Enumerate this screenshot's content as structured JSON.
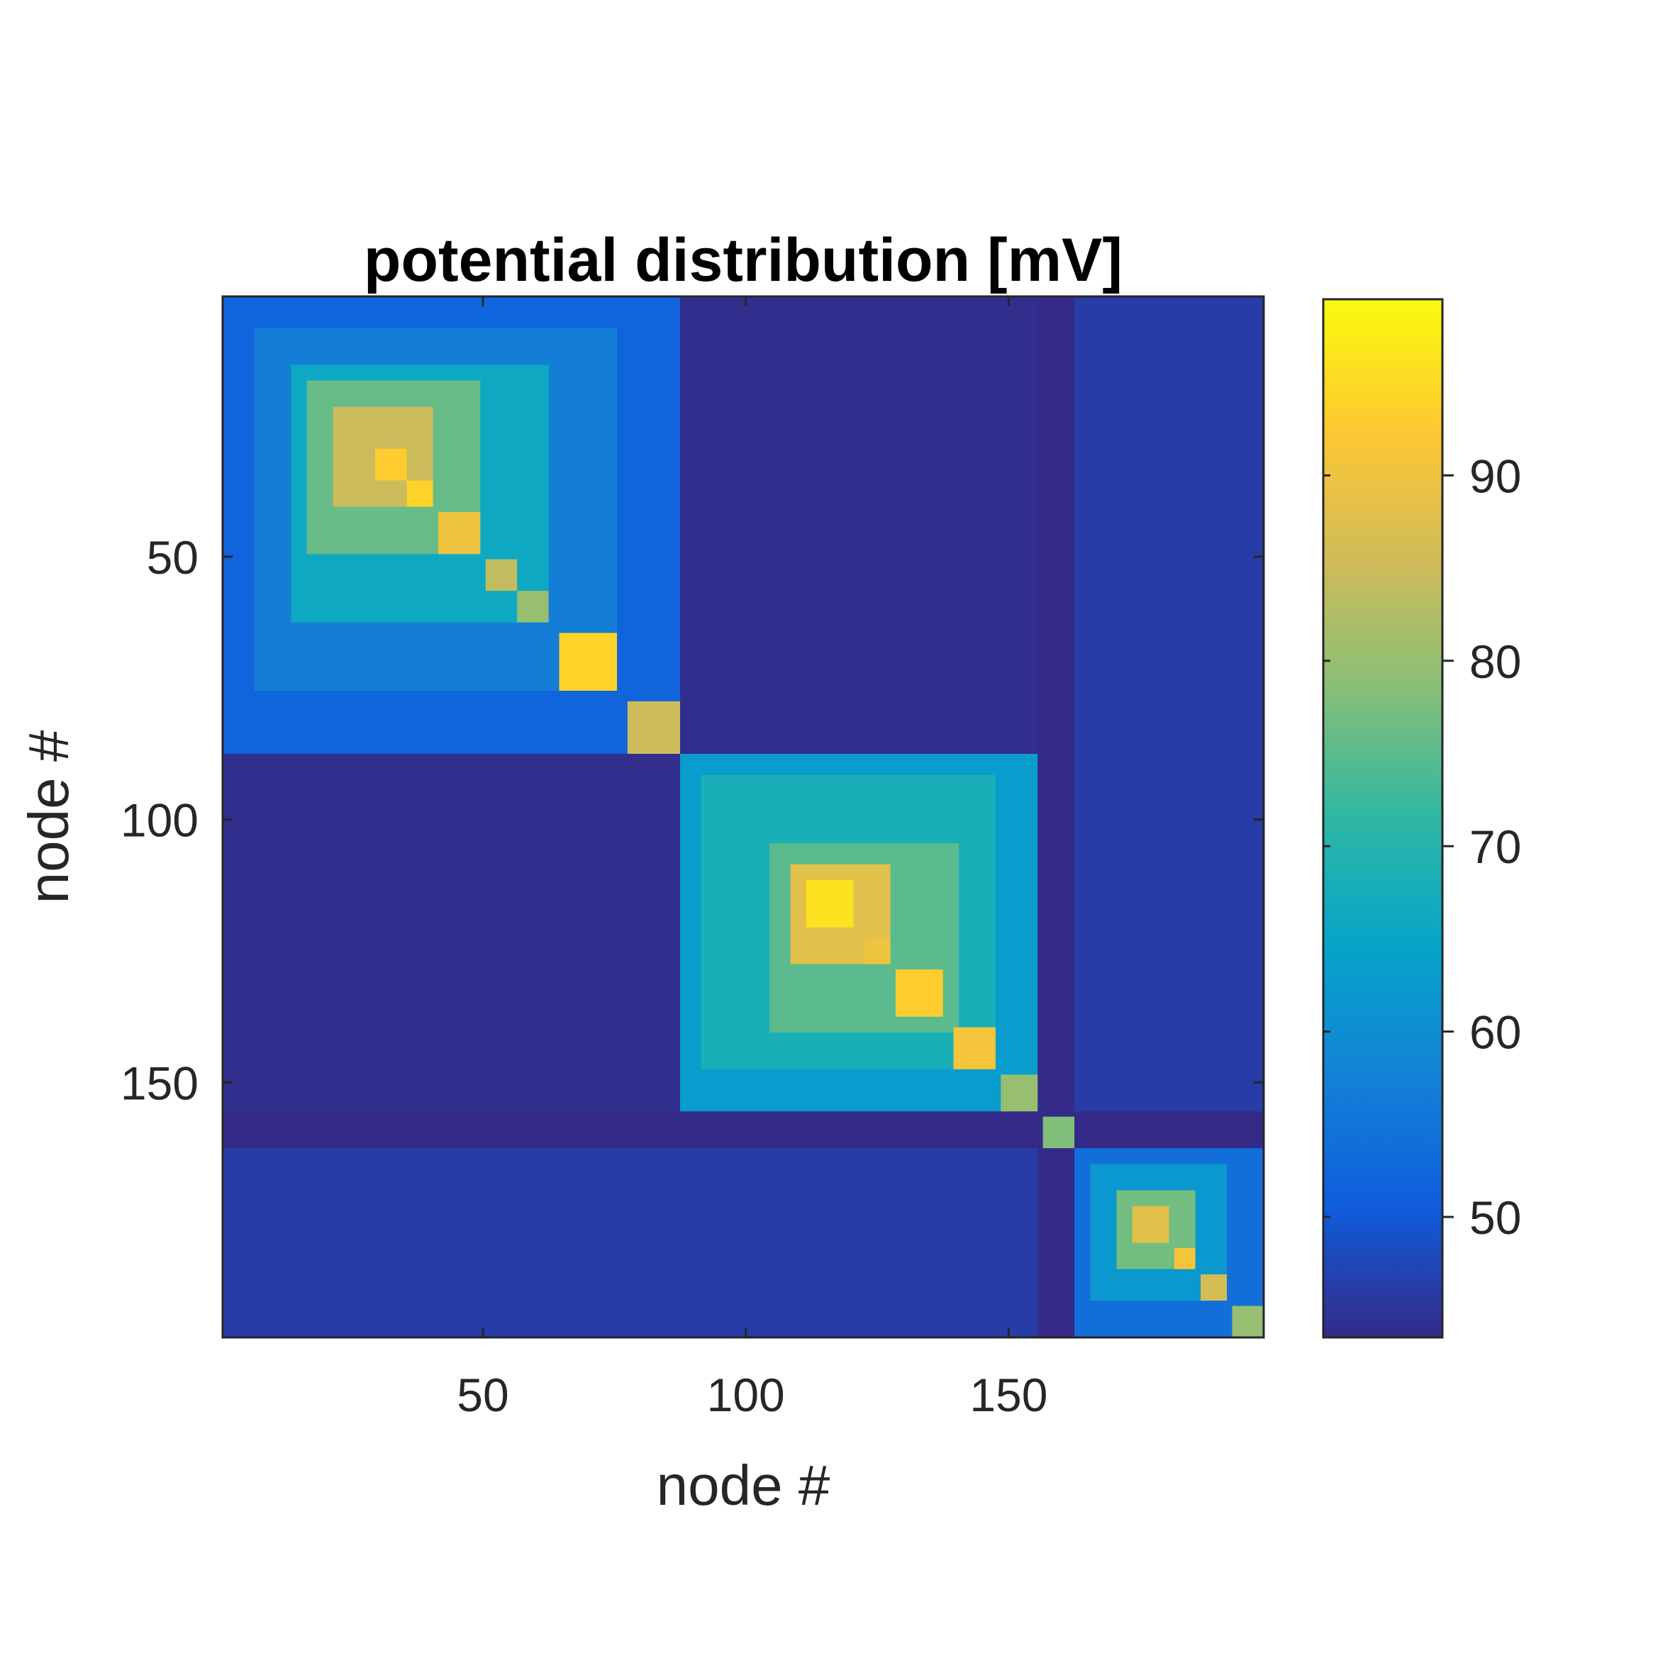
{
  "chart_data": {
    "type": "heatmap",
    "title": "potential distribution [mV]",
    "xlabel": "node #",
    "ylabel": "node #",
    "xlim": [
      0.5,
      198.5
    ],
    "ylim": [
      0.5,
      198.5
    ],
    "y_reversed": true,
    "xticks": [
      50,
      100,
      150
    ],
    "yticks": [
      50,
      100,
      150
    ],
    "colorbar": {
      "clim": [
        43.5,
        99.5
      ],
      "ticks": [
        50,
        60,
        70,
        80,
        90
      ],
      "colormap": "parula"
    },
    "grid": false,
    "n_nodes": 198,
    "baseline_mV": 44,
    "off_diagonal_cluster_pairs": [
      {
        "rows": [
          1,
          87
        ],
        "cols": [
          88,
          155
        ],
        "value": 44
      },
      {
        "rows": [
          1,
          87
        ],
        "cols": [
          163,
          198
        ],
        "value": 46
      },
      {
        "rows": [
          88,
          155
        ],
        "cols": [
          163,
          198
        ],
        "value": 46
      }
    ],
    "diagonal_blocks": [
      {
        "range": [
          1,
          87
        ],
        "value": 52
      },
      {
        "range": [
          7,
          75
        ],
        "value": 57
      },
      {
        "range": [
          14,
          62
        ],
        "value": 66
      },
      {
        "range": [
          17,
          49
        ],
        "value": 76
      },
      {
        "range": [
          22,
          40
        ],
        "value": 85
      },
      {
        "range": [
          30,
          35
        ],
        "value": 93
      },
      {
        "range": [
          36,
          40
        ],
        "value": 94
      },
      {
        "range": [
          42,
          49
        ],
        "value": 90
      },
      {
        "range": [
          51,
          56
        ],
        "value": 84
      },
      {
        "range": [
          57,
          62
        ],
        "value": 80
      },
      {
        "range": [
          65,
          75
        ],
        "value": 94
      },
      {
        "range": [
          78,
          87
        ],
        "value": 85
      },
      {
        "range": [
          88,
          155
        ],
        "value": 63
      },
      {
        "range": [
          92,
          147
        ],
        "value": 68
      },
      {
        "range": [
          105,
          140
        ],
        "value": 75
      },
      {
        "range": [
          109,
          127
        ],
        "value": 88
      },
      {
        "range": [
          112,
          120
        ],
        "value": 96
      },
      {
        "range": [
          123,
          127
        ],
        "value": 90
      },
      {
        "range": [
          129,
          137
        ],
        "value": 93
      },
      {
        "range": [
          140,
          147
        ],
        "value": 91
      },
      {
        "range": [
          149,
          155
        ],
        "value": 80
      },
      {
        "range": [
          157,
          162
        ],
        "value": 78
      },
      {
        "range": [
          163,
          198
        ],
        "value": 54
      },
      {
        "range": [
          166,
          191
        ],
        "value": 62
      },
      {
        "range": [
          171,
          185
        ],
        "value": 77
      },
      {
        "range": [
          174,
          180
        ],
        "value": 88
      },
      {
        "range": [
          182,
          185
        ],
        "value": 91
      },
      {
        "range": [
          187,
          191
        ],
        "value": 86
      },
      {
        "range": [
          193,
          198
        ],
        "value": 80
      }
    ]
  }
}
